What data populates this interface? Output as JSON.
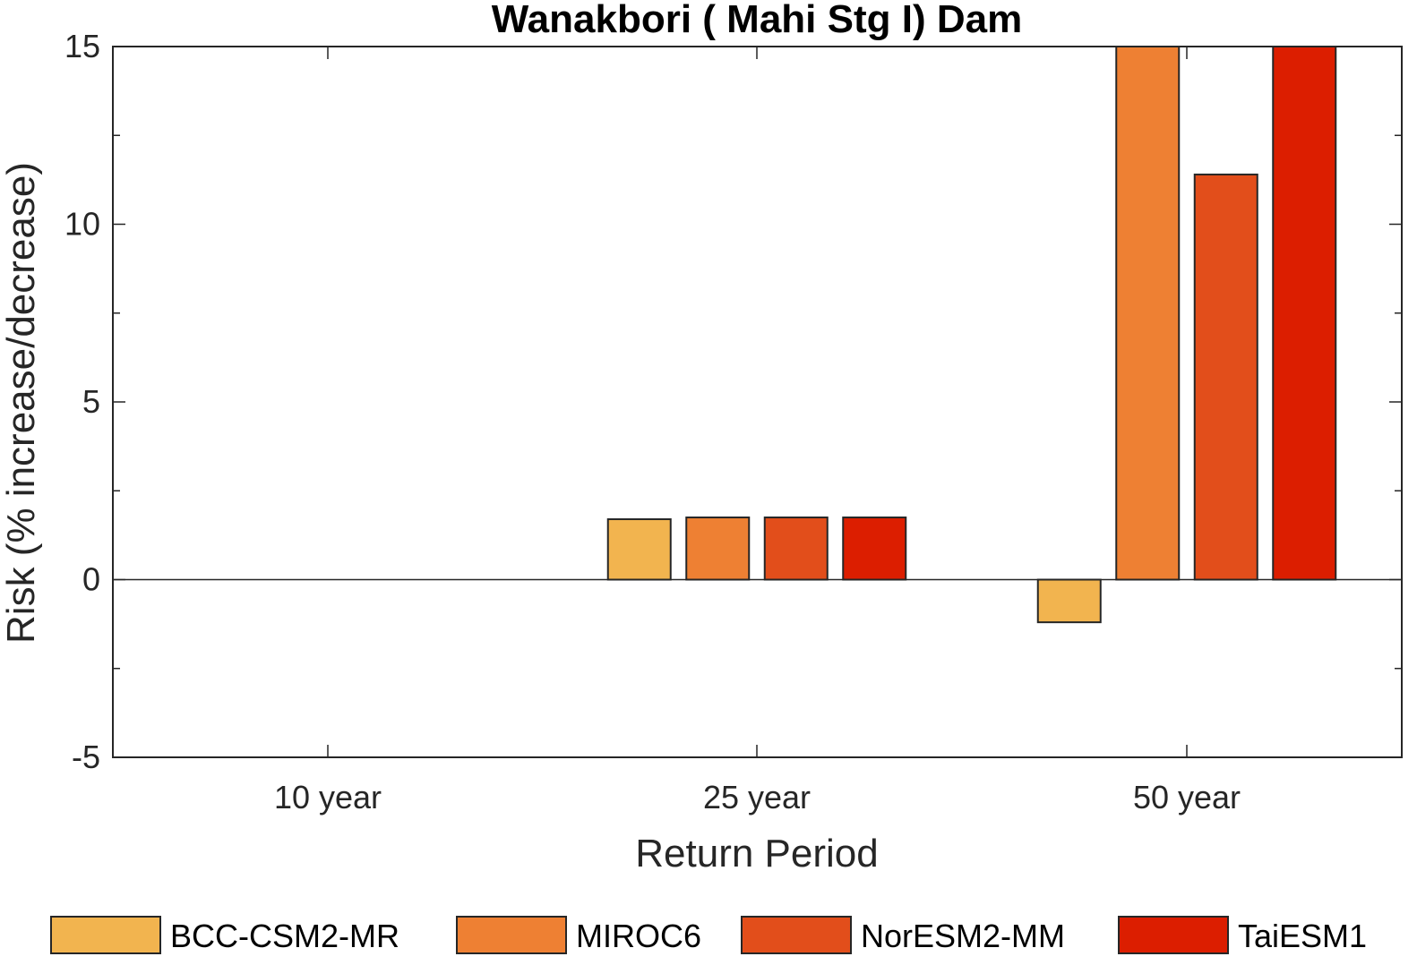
{
  "chart_data": {
    "type": "bar",
    "title": "Wanakbori ( Mahi Stg I) Dam",
    "xlabel": "Return Period",
    "ylabel": "Risk (% increase/decrease)",
    "categories": [
      "10 year",
      "25 year",
      "50 year"
    ],
    "ylim": [
      -5,
      15
    ],
    "yticks": [
      -5,
      0,
      5,
      10,
      15
    ],
    "grid": false,
    "legend_position": "bottom",
    "series": [
      {
        "name": "BCC-CSM2-MR",
        "color": "#F2B44F",
        "values": [
          0,
          1.7,
          -1.2
        ]
      },
      {
        "name": "MIROC6",
        "color": "#EE8033",
        "values": [
          0,
          1.75,
          15.2
        ]
      },
      {
        "name": "NorESM2-MM",
        "color": "#E24E1B",
        "values": [
          0,
          1.75,
          11.4
        ]
      },
      {
        "name": "TaiESM1",
        "color": "#DC1E00",
        "values": [
          0,
          1.75,
          15.2
        ]
      }
    ]
  }
}
